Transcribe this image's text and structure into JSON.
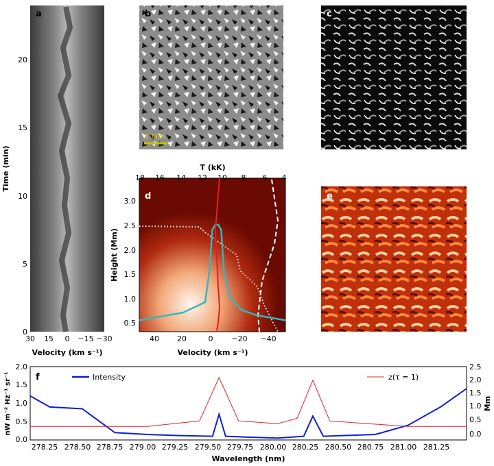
{
  "panels": {
    "a": {
      "letter": "a",
      "ylabel": "Time (min)",
      "xlabel": "Velocity (km s⁻¹)",
      "yticks": [
        "0",
        "5",
        "10",
        "15",
        "20"
      ],
      "xticks": [
        "30",
        "15",
        "0",
        "−15",
        "−30"
      ]
    },
    "b": {
      "letter": "b",
      "scalebar": "3 Mm"
    },
    "c": {
      "letter": "c"
    },
    "d": {
      "letter": "d",
      "ylabel": "Height (Mm)",
      "xlabel": "Velocity (km s⁻¹)",
      "toplabel": "T (kK)",
      "yticks": [
        "0.5",
        "1.0",
        "1.5",
        "2.0",
        "2.5",
        "3.0"
      ],
      "xticks": [
        "40",
        "20",
        "0",
        "−20",
        "−40"
      ],
      "topticks": [
        "18",
        "16",
        "14",
        "12",
        "10",
        "8",
        "6",
        "4"
      ]
    },
    "e": {
      "letter": "e"
    },
    "f": {
      "letter": "f",
      "ylabel_left": "nW m⁻² Hz⁻¹ sr⁻¹",
      "ylabel_right": "Mm",
      "xlabel": "Wavelength (nm)",
      "legend_intensity": "Intensity",
      "legend_z": "z(τ = 1)",
      "yticks_left": [
        "0.0",
        "0.5",
        "1.0",
        "1.5",
        "2.0"
      ],
      "yticks_right": [
        "0.0",
        "0.5",
        "1.0",
        "1.5",
        "2.0",
        "2.5"
      ],
      "xticks": [
        "278.25",
        "278.50",
        "278.75",
        "279.00",
        "279.25",
        "279.50",
        "279.75",
        "280.00",
        "280.25",
        "280.50",
        "280.75",
        "281.00",
        "281.25"
      ]
    }
  },
  "colors": {
    "intensity": "#0a1ed8",
    "z": "#e0202a",
    "cyan": "#30b8c0",
    "scalebar": "#c8c000"
  },
  "chart_data": [
    {
      "type": "line",
      "panel": "f",
      "series": [
        {
          "name": "Intensity",
          "x": [
            278.1,
            278.25,
            278.5,
            278.75,
            279.0,
            279.25,
            279.5,
            279.55,
            279.6,
            279.75,
            280.0,
            280.2,
            280.27,
            280.35,
            280.5,
            280.75,
            281.0,
            281.25,
            281.45
          ],
          "values": [
            1.2,
            0.9,
            0.85,
            0.2,
            0.15,
            0.12,
            0.1,
            0.7,
            0.1,
            0.08,
            0.05,
            0.1,
            0.65,
            0.1,
            0.12,
            0.15,
            0.4,
            0.9,
            1.4
          ]
        },
        {
          "name": "z(τ = 1)",
          "x": [
            278.1,
            278.5,
            279.0,
            279.4,
            279.55,
            279.7,
            280.0,
            280.15,
            280.27,
            280.4,
            281.0,
            281.45
          ],
          "values": [
            0.3,
            0.3,
            0.3,
            0.5,
            2.1,
            0.5,
            0.4,
            0.6,
            2.0,
            0.5,
            0.3,
            0.3
          ]
        }
      ],
      "xlim": [
        278.1,
        281.45
      ],
      "ylim": [
        0,
        2.0
      ],
      "ylim_right": [
        -0.2,
        2.5
      ]
    },
    {
      "type": "line",
      "panel": "d",
      "xlim": [
        50,
        -50
      ],
      "ylim": [
        0.33,
        3.3
      ],
      "series": [
        {
          "name": "",
          "x": [
            50,
            40,
            20,
            5,
            2,
            0,
            -2,
            -4,
            -6,
            -8,
            -12,
            -20,
            -30,
            -40,
            -50
          ],
          "values": [
            0.55,
            0.6,
            0.7,
            0.9,
            1.5,
            2.3,
            2.4,
            2.4,
            2.3,
            1.5,
            1.0,
            0.75,
            0.65,
            0.6,
            0.55
          ]
        },
        {
          "name": "",
          "x": [
            -5,
            -4,
            -3,
            -2,
            -3,
            -4,
            -5,
            -4,
            -3
          ],
          "values": [
            3.3,
            3.0,
            2.6,
            2.3,
            1.8,
            1.2,
            0.8,
            0.5,
            0.35
          ]
        }
      ]
    }
  ]
}
